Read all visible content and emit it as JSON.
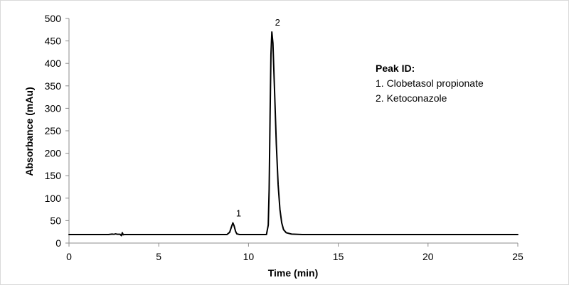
{
  "chart_data": {
    "type": "line",
    "xlabel": "Time (min)",
    "ylabel": "Absorbance (mAu)",
    "xlim": [
      0,
      25
    ],
    "ylim": [
      0,
      500
    ],
    "x_ticks": [
      0,
      5,
      10,
      15,
      20,
      25
    ],
    "y_ticks": [
      0,
      50,
      100,
      150,
      200,
      250,
      300,
      350,
      400,
      450,
      500
    ],
    "grid": false,
    "line_color": "#000000",
    "baseline": 19,
    "series": [
      {
        "values": [
          [
            0.0,
            19
          ],
          [
            2.2,
            19
          ],
          [
            2.4,
            20
          ],
          [
            2.5,
            19.5
          ],
          [
            2.6,
            20.5
          ],
          [
            2.7,
            19.5
          ],
          [
            2.85,
            19.5
          ],
          [
            2.92,
            16.5
          ],
          [
            2.97,
            23
          ],
          [
            3.02,
            18.5
          ],
          [
            3.1,
            19
          ],
          [
            8.8,
            19
          ],
          [
            8.95,
            24
          ],
          [
            9.05,
            36
          ],
          [
            9.13,
            45
          ],
          [
            9.2,
            38
          ],
          [
            9.28,
            26
          ],
          [
            9.35,
            20.5
          ],
          [
            9.5,
            19
          ],
          [
            11.0,
            19
          ],
          [
            11.1,
            40
          ],
          [
            11.15,
            120
          ],
          [
            11.2,
            280
          ],
          [
            11.25,
            420
          ],
          [
            11.3,
            470
          ],
          [
            11.36,
            445
          ],
          [
            11.45,
            340
          ],
          [
            11.55,
            220
          ],
          [
            11.65,
            130
          ],
          [
            11.75,
            75
          ],
          [
            11.85,
            45
          ],
          [
            11.95,
            30
          ],
          [
            12.1,
            23
          ],
          [
            12.4,
            20
          ],
          [
            13.0,
            19
          ],
          [
            25.0,
            19
          ]
        ]
      }
    ],
    "peaks": [
      {
        "label": "1",
        "x": 9.13,
        "y": 45
      },
      {
        "label": "2",
        "x": 11.3,
        "y": 470
      }
    ],
    "legend": {
      "title": "Peak ID:",
      "items": [
        "1. Clobetasol propionate",
        "2. Ketoconazole"
      ],
      "placement": "top-right"
    }
  }
}
